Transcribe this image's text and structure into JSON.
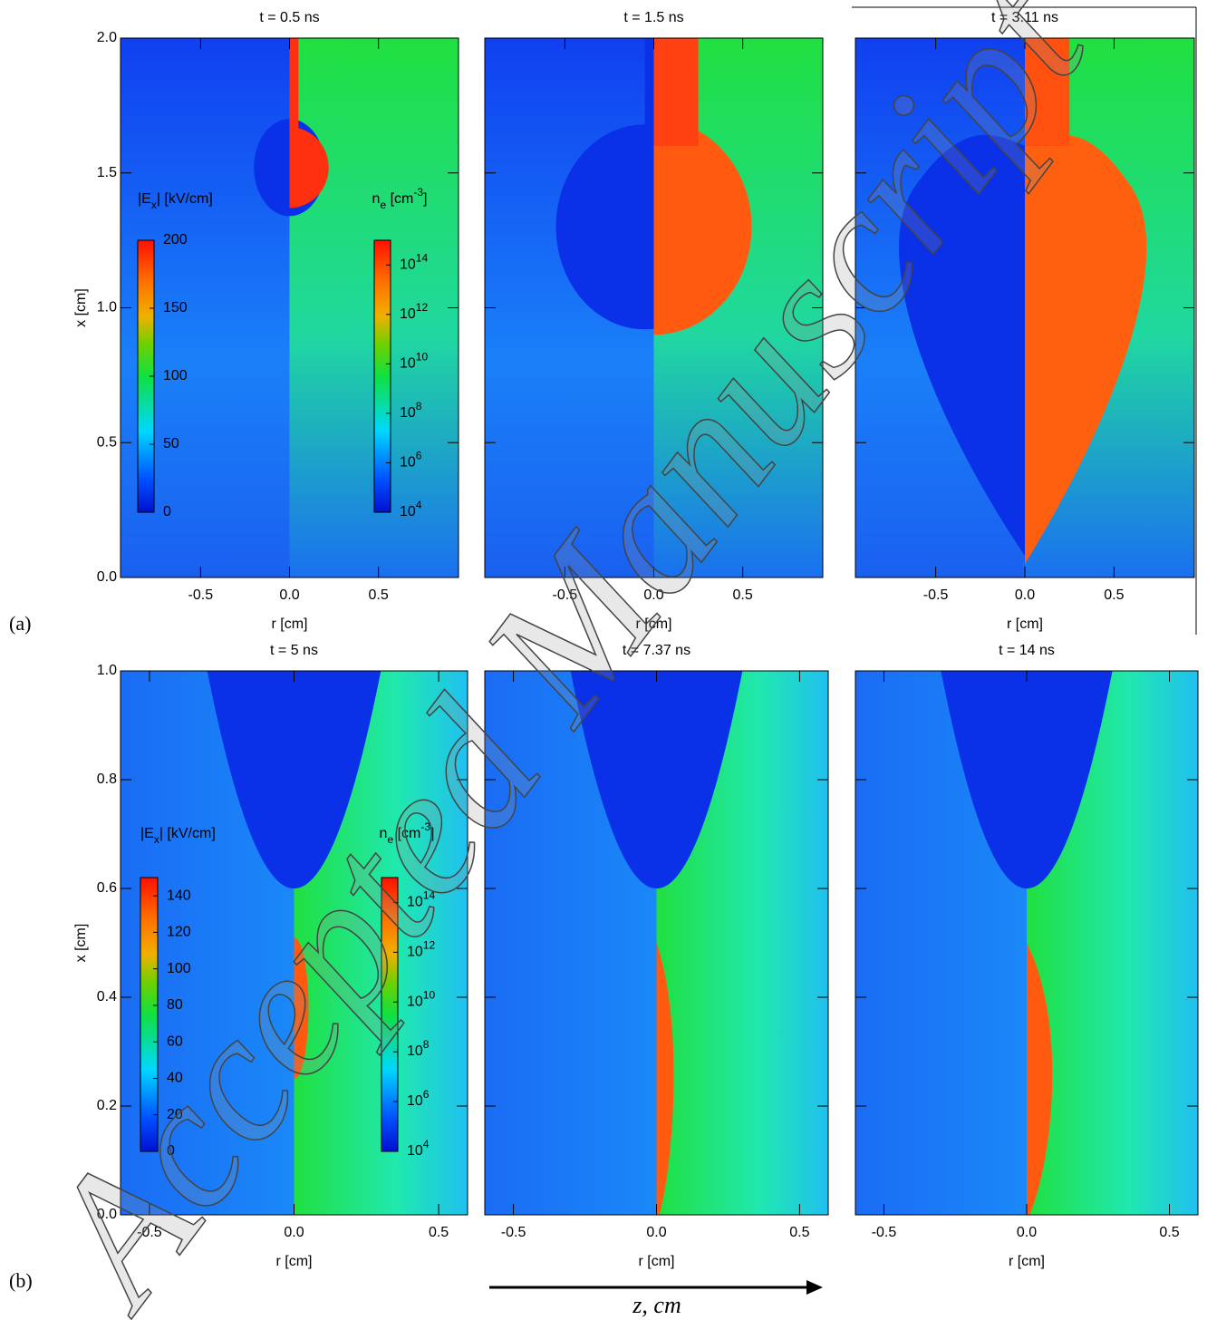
{
  "figure": {
    "watermark": "Accepted Manuscript",
    "arrow_label": "z, cm",
    "rows": [
      {
        "label": "(a)",
        "xlim": [
          -0.95,
          0.95
        ],
        "ylim": [
          0,
          2
        ],
        "xticks": [
          -0.5,
          {
            "value": 0,
            "label": "0.0"
          },
          0.5
        ],
        "yticks": [
          {
            "value": 0,
            "label": "0.0"
          },
          0.5,
          {
            "value": 1,
            "label": "1.0"
          },
          1.5,
          {
            "value": 2,
            "label": "2.0"
          }
        ],
        "ylabel": "x [cm]",
        "colorbars": [
          {
            "title": "|E",
            "title_sub": "x",
            "title_rest": "| [kV/cm]",
            "lim": [
              0,
              200
            ],
            "ticks": [
              0,
              50,
              100,
              150,
              200
            ]
          },
          {
            "title": "n",
            "title_sub": "e",
            "title_rest": " [cm",
            "title_sup": "-3",
            "title_end": "]",
            "scale": "log",
            "lim": [
              10000,
              1000000000000000
            ],
            "ticks": [
              {
                "value": 10000,
                "label": "10",
                "exponent": "4"
              },
              {
                "value": 1000000,
                "label": "10",
                "exponent": "6"
              },
              {
                "value": 100000000,
                "label": "10",
                "exponent": "8"
              },
              {
                "value": 10000000000,
                "label": "10",
                "exponent": "10"
              },
              {
                "value": 1000000000000,
                "label": "10",
                "exponent": "12"
              },
              {
                "value": 100000000000000,
                "label": "10",
                "exponent": "14"
              }
            ]
          }
        ],
        "panels": [
          {
            "title": "t = 0.5 ns",
            "xlabel": "r [cm]"
          },
          {
            "title": "t = 1.5 ns",
            "xlabel": "r [cm]"
          },
          {
            "title": "t = 3.11 ns",
            "xlabel": "r [cm]"
          }
        ]
      },
      {
        "label": "(b)",
        "xlim": [
          -0.6,
          0.6
        ],
        "ylim": [
          0,
          1
        ],
        "xticks": [
          -0.5,
          {
            "value": 0,
            "label": "0.0"
          },
          0.5
        ],
        "yticks": [
          {
            "value": 0,
            "label": "0.0"
          },
          0.2,
          0.4,
          0.6,
          0.8,
          {
            "value": 1,
            "label": "1.0"
          }
        ],
        "ylabel": "x [cm]",
        "colorbars": [
          {
            "title": "|E",
            "title_sub": "x",
            "title_rest": "| [kV/cm]",
            "lim": [
              0,
              150
            ],
            "ticks": [
              0,
              20,
              40,
              60,
              80,
              100,
              120,
              140
            ]
          },
          {
            "title": "n",
            "title_sub": "e",
            "title_rest": " [cm",
            "title_sup": "-3",
            "title_end": "]",
            "scale": "log",
            "lim": [
              10000,
              1000000000000000
            ],
            "ticks": [
              {
                "value": 10000,
                "label": "10",
                "exponent": "4"
              },
              {
                "value": 1000000,
                "label": "10",
                "exponent": "6"
              },
              {
                "value": 100000000,
                "label": "10",
                "exponent": "8"
              },
              {
                "value": 10000000000,
                "label": "10",
                "exponent": "10"
              },
              {
                "value": 1000000000000,
                "label": "10",
                "exponent": "12"
              },
              {
                "value": 100000000000000,
                "label": "10",
                "exponent": "14"
              }
            ]
          }
        ],
        "panels": [
          {
            "title": "t = 5 ns",
            "xlabel": "r [cm]"
          },
          {
            "title": "t = 7.37 ns",
            "xlabel": "r [cm]"
          },
          {
            "title": "t = 14 ns",
            "xlabel": "r [cm]"
          }
        ]
      }
    ]
  }
}
